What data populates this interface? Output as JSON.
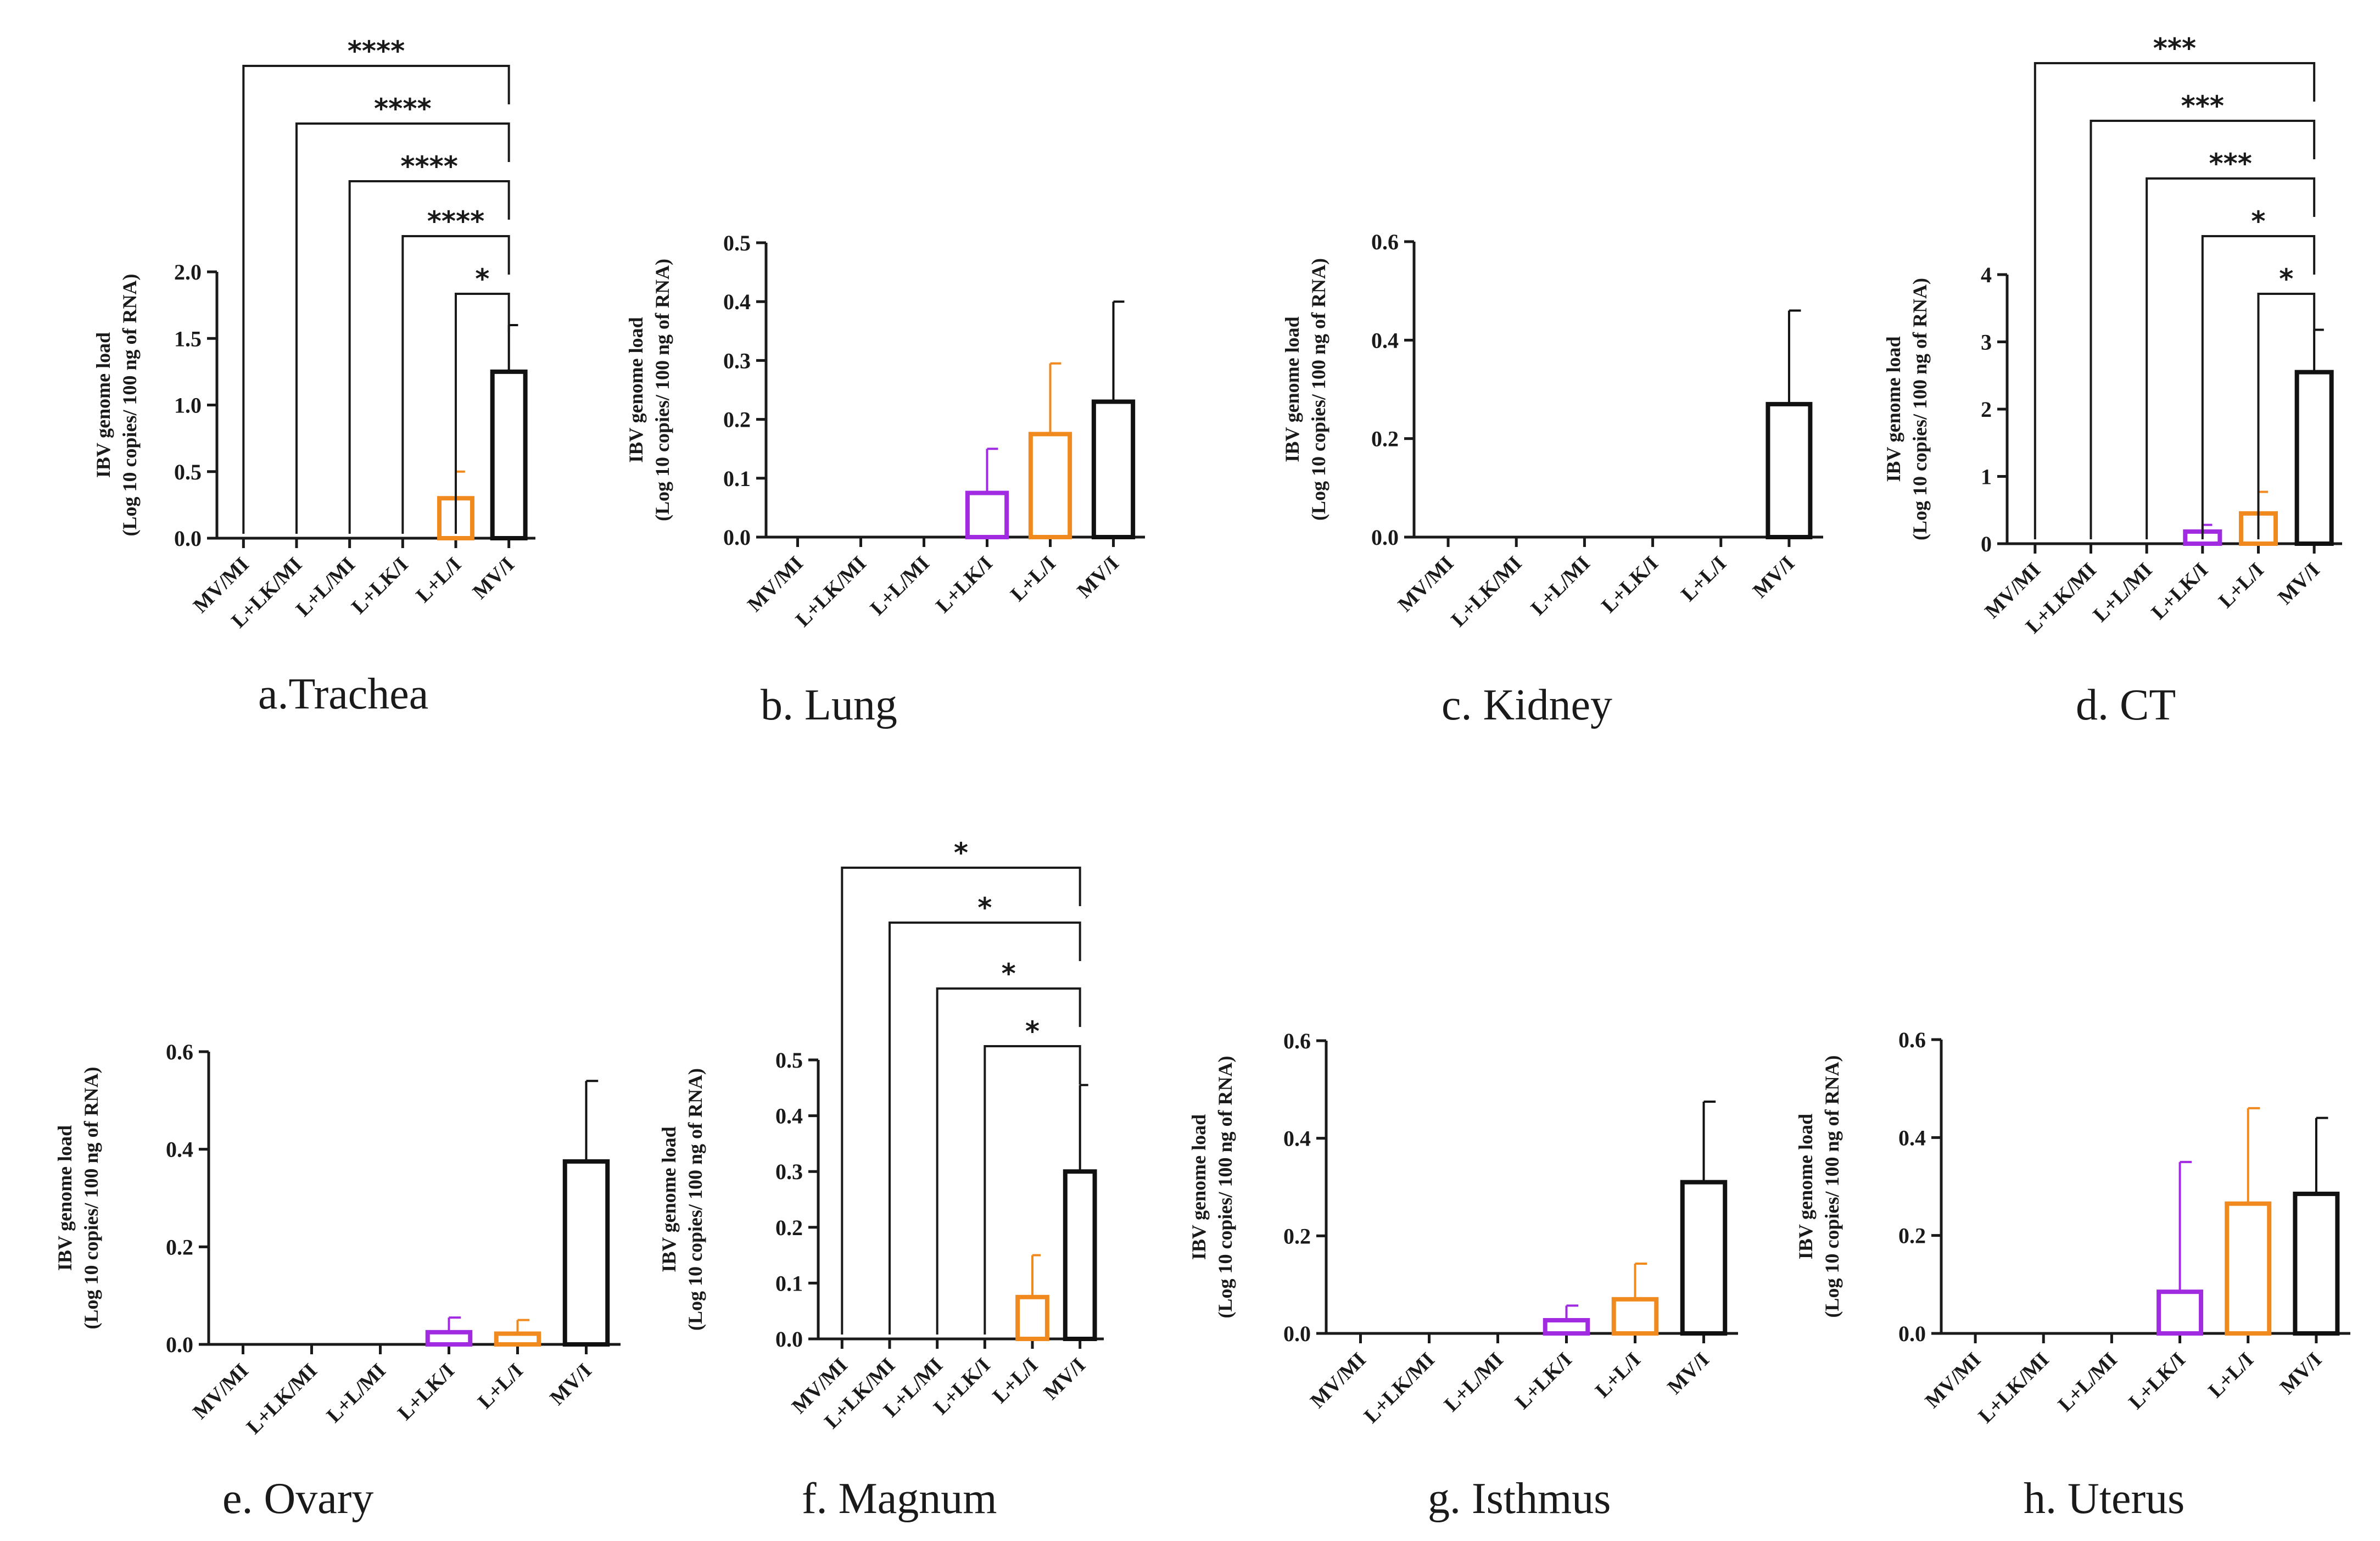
{
  "figure": {
    "ylabel_line1": "IBV genome load",
    "ylabel_line2": "(Log 10 copies/ 100 ng of RNA)"
  },
  "colors": {
    "MV/MI": "#1a1a1a",
    "L+LK/MI": "#1a1a1a",
    "L+L/MI": "#1a1a1a",
    "L+LK/I": "#a12be0",
    "L+L/I": "#f08a1e",
    "MV/I": "#111111"
  },
  "chart_data": [
    {
      "type": "bar",
      "title": "a.Trachea",
      "categories": [
        "MV/MI",
        "L+LK/MI",
        "L+L/MI",
        "L+LK/I",
        "L+L/I",
        "MV/I"
      ],
      "values": [
        0,
        0,
        0,
        0,
        0.3,
        1.25
      ],
      "errors": [
        0,
        0,
        0,
        0,
        0.2,
        0.35
      ],
      "ylim": [
        0,
        2.0
      ],
      "yticks": [
        "0.0",
        "0.5",
        "1.0",
        "1.5",
        "2.0"
      ],
      "grid": false,
      "comparisons": [
        {
          "from": "MV/MI",
          "to": "MV/I",
          "label": "****"
        },
        {
          "from": "L+LK/MI",
          "to": "MV/I",
          "label": "****"
        },
        {
          "from": "L+L/MI",
          "to": "MV/I",
          "label": "****"
        },
        {
          "from": "L+LK/I",
          "to": "MV/I",
          "label": "****"
        },
        {
          "from": "L+L/I",
          "to": "MV/I",
          "label": "*"
        }
      ]
    },
    {
      "type": "bar",
      "title": "b. Lung",
      "categories": [
        "MV/MI",
        "L+LK/MI",
        "L+L/MI",
        "L+LK/I",
        "L+L/I",
        "MV/I"
      ],
      "values": [
        0,
        0,
        0,
        0.075,
        0.175,
        0.23
      ],
      "errors": [
        0,
        0,
        0,
        0.075,
        0.12,
        0.17
      ],
      "ylim": [
        0,
        0.5
      ],
      "yticks": [
        "0.0",
        "0.1",
        "0.2",
        "0.3",
        "0.4",
        "0.5"
      ],
      "grid": false,
      "comparisons": []
    },
    {
      "type": "bar",
      "title": "c. Kidney",
      "categories": [
        "MV/MI",
        "L+LK/MI",
        "L+L/MI",
        "L+LK/I",
        "L+L/I",
        "MV/I"
      ],
      "values": [
        0,
        0,
        0,
        0,
        0,
        0.27
      ],
      "errors": [
        0,
        0,
        0,
        0,
        0,
        0.19
      ],
      "ylim": [
        0,
        0.6
      ],
      "yticks": [
        "0.0",
        "0.2",
        "0.4",
        "0.6"
      ],
      "grid": false,
      "comparisons": []
    },
    {
      "type": "bar",
      "title": "d. CT",
      "categories": [
        "MV/MI",
        "L+LK/MI",
        "L+L/MI",
        "L+LK/I",
        "L+L/I",
        "MV/I"
      ],
      "values": [
        0,
        0,
        0,
        0.18,
        0.45,
        2.55
      ],
      "errors": [
        0,
        0,
        0,
        0.1,
        0.32,
        0.63
      ],
      "ylim": [
        0,
        4
      ],
      "yticks": [
        "0",
        "1",
        "2",
        "3",
        "4"
      ],
      "grid": false,
      "comparisons": [
        {
          "from": "MV/MI",
          "to": "MV/I",
          "label": "***"
        },
        {
          "from": "L+LK/MI",
          "to": "MV/I",
          "label": "***"
        },
        {
          "from": "L+L/MI",
          "to": "MV/I",
          "label": "***"
        },
        {
          "from": "L+LK/I",
          "to": "MV/I",
          "label": "*"
        },
        {
          "from": "L+L/I",
          "to": "MV/I",
          "label": "*"
        }
      ]
    },
    {
      "type": "bar",
      "title": "e. Ovary",
      "categories": [
        "MV/MI",
        "L+LK/MI",
        "L+L/MI",
        "L+LK/I",
        "L+L/I",
        "MV/I"
      ],
      "values": [
        0,
        0,
        0,
        0.025,
        0.022,
        0.375
      ],
      "errors": [
        0,
        0,
        0,
        0.03,
        0.028,
        0.165
      ],
      "ylim": [
        0,
        0.6
      ],
      "yticks": [
        "0.0",
        "0.2",
        "0.4",
        "0.6"
      ],
      "grid": false,
      "comparisons": []
    },
    {
      "type": "bar",
      "title": "f. Magnum",
      "categories": [
        "MV/MI",
        "L+LK/MI",
        "L+L/MI",
        "L+LK/I",
        "L+L/I",
        "MV/I"
      ],
      "values": [
        0,
        0,
        0,
        0,
        0.075,
        0.3
      ],
      "errors": [
        0,
        0,
        0,
        0,
        0.075,
        0.155
      ],
      "ylim": [
        0,
        0.5
      ],
      "yticks": [
        "0.0",
        "0.1",
        "0.2",
        "0.3",
        "0.4",
        "0.5"
      ],
      "grid": false,
      "comparisons": [
        {
          "from": "MV/MI",
          "to": "MV/I",
          "label": "*"
        },
        {
          "from": "L+LK/MI",
          "to": "MV/I",
          "label": "*"
        },
        {
          "from": "L+L/MI",
          "to": "MV/I",
          "label": "*"
        },
        {
          "from": "L+LK/I",
          "to": "MV/I",
          "label": "*"
        }
      ]
    },
    {
      "type": "bar",
      "title": "g. Isthmus",
      "categories": [
        "MV/MI",
        "L+LK/MI",
        "L+L/MI",
        "L+LK/I",
        "L+L/I",
        "MV/I"
      ],
      "values": [
        0,
        0,
        0,
        0.027,
        0.07,
        0.31
      ],
      "errors": [
        0,
        0,
        0,
        0.03,
        0.073,
        0.165
      ],
      "ylim": [
        0,
        0.6
      ],
      "yticks": [
        "0.0",
        "0.2",
        "0.4",
        "0.6"
      ],
      "grid": false,
      "comparisons": []
    },
    {
      "type": "bar",
      "title": "h. Uterus",
      "categories": [
        "MV/MI",
        "L+LK/MI",
        "L+L/MI",
        "L+LK/I",
        "L+L/I",
        "MV/I"
      ],
      "values": [
        0,
        0,
        0,
        0.085,
        0.265,
        0.285
      ],
      "errors": [
        0,
        0,
        0,
        0.265,
        0.195,
        0.155
      ],
      "ylim": [
        0,
        0.6
      ],
      "yticks": [
        "0.0",
        "0.2",
        "0.4",
        "0.6"
      ],
      "grid": false,
      "comparisons": []
    }
  ]
}
